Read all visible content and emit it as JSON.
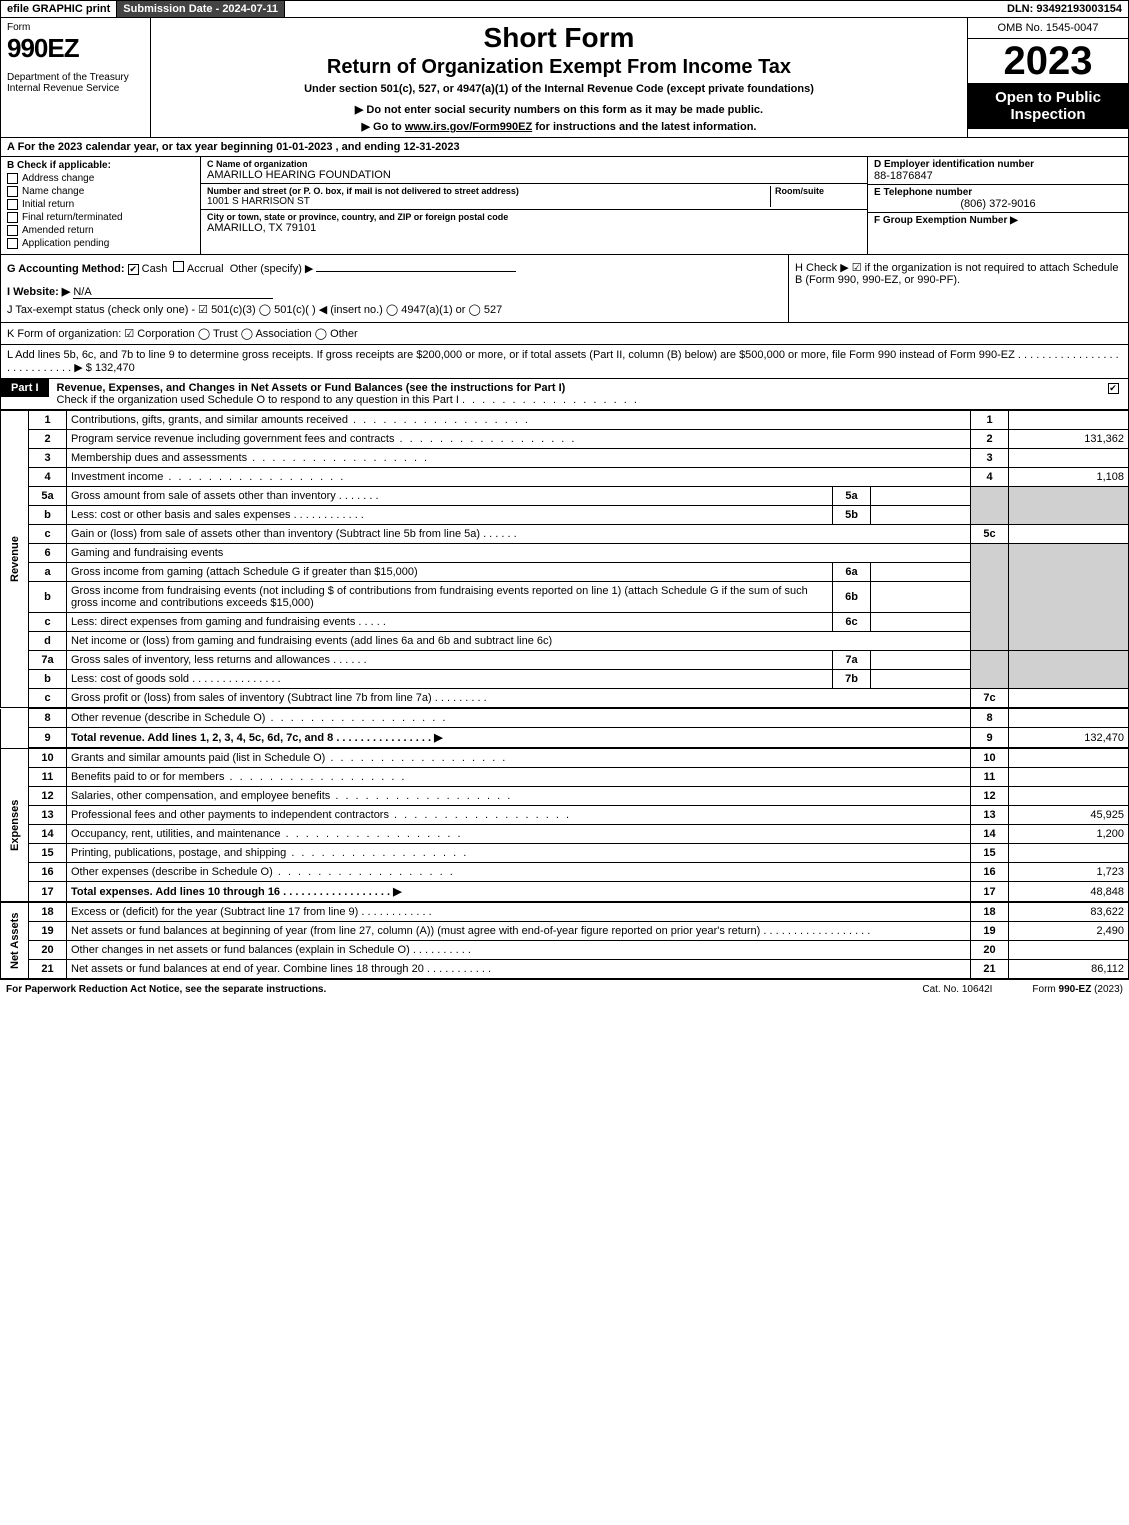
{
  "topbar": {
    "efile": "efile GRAPHIC print",
    "subdate": "Submission Date - 2024-07-11",
    "dln": "DLN: 93492193003154"
  },
  "header": {
    "form_word": "Form",
    "form_num": "990EZ",
    "dept": "Department of the Treasury\nInternal Revenue Service",
    "title1": "Short Form",
    "title2": "Return of Organization Exempt From Income Tax",
    "sub1": "Under section 501(c), 527, or 4947(a)(1) of the Internal Revenue Code (except private foundations)",
    "sub2": "▶ Do not enter social security numbers on this form as it may be made public.",
    "sub3_prefix": "▶ Go to ",
    "sub3_link": "www.irs.gov/Form990EZ",
    "sub3_suffix": " for instructions and the latest information.",
    "omb": "OMB No. 1545-0047",
    "year": "2023",
    "open": "Open to Public Inspection"
  },
  "line_a": "A  For the 2023 calendar year, or tax year beginning 01-01-2023 , and ending 12-31-2023",
  "section_b": {
    "label": "B  Check if applicable:",
    "items": [
      {
        "label": "Address change",
        "checked": false
      },
      {
        "label": "Name change",
        "checked": false
      },
      {
        "label": "Initial return",
        "checked": false
      },
      {
        "label": "Final return/terminated",
        "checked": false
      },
      {
        "label": "Amended return",
        "checked": false
      },
      {
        "label": "Application pending",
        "checked": false
      }
    ]
  },
  "section_c": {
    "name_lbl": "C Name of organization",
    "name_val": "AMARILLO HEARING FOUNDATION",
    "street_lbl": "Number and street (or P. O. box, if mail is not delivered to street address)",
    "street_val": "1001 S HARRISON ST",
    "room_lbl": "Room/suite",
    "city_lbl": "City or town, state or province, country, and ZIP or foreign postal code",
    "city_val": "AMARILLO, TX  79101"
  },
  "section_d": {
    "ein_lbl": "D Employer identification number",
    "ein_val": "88-1876847",
    "tel_lbl": "E Telephone number",
    "tel_val": "(806) 372-9016",
    "grp_lbl": "F Group Exemption Number  ▶"
  },
  "section_g": {
    "label": "G Accounting Method:",
    "cash": "Cash",
    "accrual": "Accrual",
    "other": "Other (specify) ▶"
  },
  "section_h": "H  Check ▶ ☑ if the organization is not required to attach Schedule B (Form 990, 990-EZ, or 990-PF).",
  "section_i": {
    "label": "I Website: ▶",
    "val": "N/A"
  },
  "section_j": "J Tax-exempt status (check only one) - ☑ 501(c)(3)  ◯ 501(c)(  ) ◀ (insert no.)  ◯ 4947(a)(1) or  ◯ 527",
  "section_k": "K Form of organization:  ☑ Corporation  ◯ Trust  ◯ Association  ◯ Other",
  "section_l": {
    "text": "L Add lines 5b, 6c, and 7b to line 9 to determine gross receipts. If gross receipts are $200,000 or more, or if total assets (Part II, column (B) below) are $500,000 or more, file Form 990 instead of Form 990-EZ  .  .  .  .  .  .  .  .  .  .  .  .  .  .  .  .  .  .  .  .  .  .  .  .  .  .  .  .  ▶ $",
    "val": "132,470"
  },
  "part1": {
    "label": "Part I",
    "title": "Revenue, Expenses, and Changes in Net Assets or Fund Balances (see the instructions for Part I)",
    "checknote": "Check if the organization used Schedule O to respond to any question in this Part I"
  },
  "sides": {
    "rev": "Revenue",
    "exp": "Expenses",
    "net": "Net Assets"
  },
  "lines": {
    "l1": {
      "n": "1",
      "d": "Contributions, gifts, grants, and similar amounts received",
      "r": "1",
      "v": ""
    },
    "l2": {
      "n": "2",
      "d": "Program service revenue including government fees and contracts",
      "r": "2",
      "v": "131,362"
    },
    "l3": {
      "n": "3",
      "d": "Membership dues and assessments",
      "r": "3",
      "v": ""
    },
    "l4": {
      "n": "4",
      "d": "Investment income",
      "r": "4",
      "v": "1,108"
    },
    "l5a": {
      "n": "5a",
      "d": "Gross amount from sale of assets other than inventory",
      "in": "5a"
    },
    "l5b": {
      "n": "b",
      "d": "Less: cost or other basis and sales expenses",
      "in": "5b"
    },
    "l5c": {
      "n": "c",
      "d": "Gain or (loss) from sale of assets other than inventory (Subtract line 5b from line 5a)",
      "r": "5c",
      "v": ""
    },
    "l6": {
      "n": "6",
      "d": "Gaming and fundraising events"
    },
    "l6a": {
      "n": "a",
      "d": "Gross income from gaming (attach Schedule G if greater than $15,000)",
      "in": "6a"
    },
    "l6b": {
      "n": "b",
      "d": "Gross income from fundraising events (not including $                           of contributions from fundraising events reported on line 1) (attach Schedule G if the sum of such gross income and contributions exceeds $15,000)",
      "in": "6b"
    },
    "l6c": {
      "n": "c",
      "d": "Less: direct expenses from gaming and fundraising events",
      "in": "6c"
    },
    "l6d": {
      "n": "d",
      "d": "Net income or (loss) from gaming and fundraising events (add lines 6a and 6b and subtract line 6c)",
      "r": "6d",
      "v": ""
    },
    "l7a": {
      "n": "7a",
      "d": "Gross sales of inventory, less returns and allowances",
      "in": "7a"
    },
    "l7b": {
      "n": "b",
      "d": "Less: cost of goods sold",
      "in": "7b"
    },
    "l7c": {
      "n": "c",
      "d": "Gross profit or (loss) from sales of inventory (Subtract line 7b from line 7a)",
      "r": "7c",
      "v": ""
    },
    "l8": {
      "n": "8",
      "d": "Other revenue (describe in Schedule O)",
      "r": "8",
      "v": ""
    },
    "l9": {
      "n": "9",
      "d": "Total revenue. Add lines 1, 2, 3, 4, 5c, 6d, 7c, and 8",
      "r": "9",
      "v": "132,470"
    },
    "l10": {
      "n": "10",
      "d": "Grants and similar amounts paid (list in Schedule O)",
      "r": "10",
      "v": ""
    },
    "l11": {
      "n": "11",
      "d": "Benefits paid to or for members",
      "r": "11",
      "v": ""
    },
    "l12": {
      "n": "12",
      "d": "Salaries, other compensation, and employee benefits",
      "r": "12",
      "v": ""
    },
    "l13": {
      "n": "13",
      "d": "Professional fees and other payments to independent contractors",
      "r": "13",
      "v": "45,925"
    },
    "l14": {
      "n": "14",
      "d": "Occupancy, rent, utilities, and maintenance",
      "r": "14",
      "v": "1,200"
    },
    "l15": {
      "n": "15",
      "d": "Printing, publications, postage, and shipping",
      "r": "15",
      "v": ""
    },
    "l16": {
      "n": "16",
      "d": "Other expenses (describe in Schedule O)",
      "r": "16",
      "v": "1,723"
    },
    "l17": {
      "n": "17",
      "d": "Total expenses. Add lines 10 through 16",
      "r": "17",
      "v": "48,848"
    },
    "l18": {
      "n": "18",
      "d": "Excess or (deficit) for the year (Subtract line 17 from line 9)",
      "r": "18",
      "v": "83,622"
    },
    "l19": {
      "n": "19",
      "d": "Net assets or fund balances at beginning of year (from line 27, column (A)) (must agree with end-of-year figure reported on prior year's return)",
      "r": "19",
      "v": "2,490"
    },
    "l20": {
      "n": "20",
      "d": "Other changes in net assets or fund balances (explain in Schedule O)",
      "r": "20",
      "v": ""
    },
    "l21": {
      "n": "21",
      "d": "Net assets or fund balances at end of year. Combine lines 18 through 20",
      "r": "21",
      "v": "86,112"
    }
  },
  "footer": {
    "left": "For Paperwork Reduction Act Notice, see the separate instructions.",
    "center": "Cat. No. 10642I",
    "right_pre": "Form ",
    "right_bold": "990-EZ",
    "right_post": " (2023)"
  },
  "colors": {
    "black": "#000000",
    "white": "#ffffff",
    "darkgray": "#444444",
    "shade": "#d0d0d0"
  }
}
